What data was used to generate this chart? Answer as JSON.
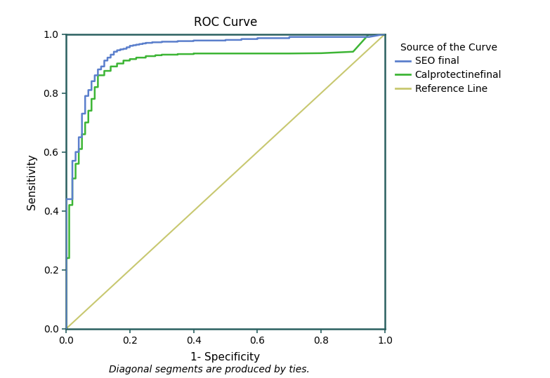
{
  "title": "ROC Curve",
  "xlabel": "1- Specificity",
  "ylabel": "Sensitivity",
  "footnote": "Diagonal segments are produced by ties.",
  "xlim": [
    0.0,
    1.0
  ],
  "ylim": [
    0.0,
    1.0
  ],
  "xticks": [
    0.0,
    0.2,
    0.4,
    0.6,
    0.8,
    1.0
  ],
  "yticks": [
    0.0,
    0.2,
    0.4,
    0.6,
    0.8,
    1.0
  ],
  "xtick_labels": [
    "0.0",
    "0.2",
    "0.4",
    "0.6",
    "0.8",
    "1.0"
  ],
  "ytick_labels": [
    "0.0",
    "0.2",
    "0.4",
    "0.6",
    "0.8",
    "1.0"
  ],
  "legend_title": "Source of the Curve",
  "legend_entries": [
    "SEO final",
    "Calprotectinefinal",
    "Reference Line"
  ],
  "seo_color": "#5b7fcc",
  "calp_color": "#3db535",
  "ref_color": "#c8c870",
  "spine_color": "#2a6060",
  "background_color": "#ffffff",
  "seo_x": [
    0.0,
    0.0,
    0.02,
    0.02,
    0.03,
    0.03,
    0.04,
    0.04,
    0.05,
    0.05,
    0.06,
    0.06,
    0.07,
    0.07,
    0.08,
    0.08,
    0.09,
    0.09,
    0.1,
    0.1,
    0.11,
    0.11,
    0.12,
    0.12,
    0.13,
    0.13,
    0.14,
    0.14,
    0.15,
    0.15,
    0.16,
    0.16,
    0.17,
    0.17,
    0.18,
    0.18,
    0.19,
    0.19,
    0.2,
    0.2,
    0.21,
    0.21,
    0.22,
    0.22,
    0.23,
    0.23,
    0.24,
    0.24,
    0.25,
    0.25,
    0.27,
    0.27,
    0.3,
    0.3,
    0.35,
    0.35,
    0.4,
    0.4,
    0.5,
    0.5,
    0.55,
    0.55,
    0.6,
    0.6,
    0.7,
    0.7,
    0.8,
    0.95,
    1.0
  ],
  "seo_y": [
    0.0,
    0.44,
    0.44,
    0.57,
    0.57,
    0.6,
    0.6,
    0.65,
    0.65,
    0.73,
    0.73,
    0.79,
    0.79,
    0.81,
    0.81,
    0.84,
    0.84,
    0.86,
    0.86,
    0.88,
    0.88,
    0.89,
    0.89,
    0.91,
    0.91,
    0.92,
    0.92,
    0.93,
    0.93,
    0.94,
    0.94,
    0.945,
    0.945,
    0.948,
    0.948,
    0.95,
    0.95,
    0.955,
    0.955,
    0.96,
    0.96,
    0.962,
    0.962,
    0.964,
    0.964,
    0.966,
    0.966,
    0.968,
    0.968,
    0.97,
    0.97,
    0.972,
    0.972,
    0.974,
    0.974,
    0.976,
    0.976,
    0.978,
    0.978,
    0.98,
    0.98,
    0.983,
    0.983,
    0.986,
    0.986,
    0.99,
    0.99,
    0.99,
    1.0
  ],
  "calp_x": [
    0.0,
    0.0,
    0.01,
    0.01,
    0.02,
    0.02,
    0.03,
    0.03,
    0.04,
    0.04,
    0.05,
    0.05,
    0.06,
    0.06,
    0.07,
    0.07,
    0.08,
    0.08,
    0.09,
    0.09,
    0.1,
    0.1,
    0.12,
    0.12,
    0.14,
    0.14,
    0.16,
    0.16,
    0.18,
    0.18,
    0.2,
    0.2,
    0.22,
    0.22,
    0.25,
    0.25,
    0.28,
    0.28,
    0.3,
    0.3,
    0.35,
    0.35,
    0.4,
    0.4,
    0.45,
    0.5,
    0.55,
    0.6,
    0.65,
    0.7,
    0.8,
    0.9,
    0.95,
    1.0
  ],
  "calp_y": [
    0.0,
    0.24,
    0.24,
    0.42,
    0.42,
    0.51,
    0.51,
    0.56,
    0.56,
    0.61,
    0.61,
    0.66,
    0.66,
    0.7,
    0.7,
    0.74,
    0.74,
    0.78,
    0.78,
    0.82,
    0.82,
    0.86,
    0.86,
    0.875,
    0.875,
    0.89,
    0.89,
    0.9,
    0.9,
    0.91,
    0.91,
    0.915,
    0.915,
    0.92,
    0.92,
    0.925,
    0.925,
    0.928,
    0.928,
    0.93,
    0.93,
    0.932,
    0.932,
    0.934,
    0.934,
    0.934,
    0.934,
    0.934,
    0.934,
    0.934,
    0.935,
    0.94,
    1.0,
    1.0
  ]
}
